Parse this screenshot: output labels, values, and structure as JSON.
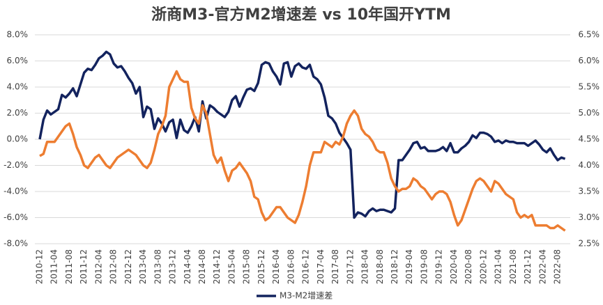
{
  "chart_data": {
    "type": "line",
    "title": "浙商M3-官方M2增速差 vs 10年国开YTM",
    "categories": [
      "2010-12",
      null,
      null,
      null,
      "2011-04",
      null,
      null,
      null,
      "2011-08",
      null,
      null,
      null,
      "2011-12",
      null,
      null,
      null,
      "2012-04",
      null,
      null,
      null,
      "2012-08",
      null,
      null,
      null,
      "2012-12",
      null,
      null,
      null,
      "2013-04",
      null,
      null,
      null,
      "2013-08",
      null,
      null,
      null,
      "2013-12",
      null,
      null,
      null,
      "2014-04",
      null,
      null,
      null,
      "2014-08",
      null,
      null,
      null,
      "2014-12",
      null,
      null,
      null,
      "2015-04",
      null,
      null,
      null,
      "2015-08",
      null,
      null,
      null,
      "2015-12",
      null,
      null,
      null,
      "2016-04",
      null,
      null,
      null,
      "2016-08",
      null,
      null,
      null,
      "2016-12",
      null,
      null,
      null,
      "2017-04",
      null,
      null,
      null,
      "2017-08",
      null,
      null,
      null,
      "2017-12",
      null,
      null,
      null,
      "2018-04",
      null,
      null,
      null,
      "2018-08",
      null,
      null,
      null,
      "2018-12",
      null,
      null,
      null,
      "2019-04",
      null,
      null,
      null,
      "2019-08",
      null,
      null,
      null,
      "2019-12",
      null,
      null,
      null,
      "2020-04",
      null,
      null,
      null,
      "2020-08",
      null,
      null,
      null,
      "2020-12",
      null,
      null,
      null,
      "2021-04",
      null,
      null,
      null,
      "2021-08",
      null,
      null,
      null,
      "2021-12",
      null,
      null,
      null,
      "2022-04",
      null,
      null,
      null,
      "2022-08",
      null,
      null
    ],
    "series": [
      {
        "name": "M3-M2增速差",
        "color": "#13235e",
        "values": [
          0,
          1.5,
          2.2,
          1.9,
          2.1,
          2.3,
          3.4,
          3.2,
          3.5,
          3.9,
          3.3,
          4.2,
          5.1,
          5.4,
          5.3,
          5.7,
          6.2,
          6.4,
          6.7,
          6.5,
          5.8,
          5.5,
          5.6,
          5.2,
          4.7,
          4.3,
          3.5,
          4.0,
          1.7,
          2.5,
          2.3,
          0.8,
          1.6,
          1.2,
          0.6,
          1.3,
          1.5,
          0.1,
          1.5,
          0.7,
          0.5,
          1.0,
          1.7,
          0.6,
          2.9,
          1.6,
          2.6,
          2.4,
          2.1,
          1.9,
          1.7,
          2.1,
          3.0,
          3.3,
          2.5,
          3.2,
          3.8,
          3.9,
          3.7,
          4.3,
          5.7,
          5.9,
          5.8,
          5.2,
          4.8,
          4.2,
          5.8,
          5.9,
          4.8,
          5.6,
          5.8,
          5.5,
          5.4,
          5.7,
          4.8,
          4.6,
          4.2,
          3.2,
          1.8,
          1.6,
          1.2,
          0.5,
          0.1,
          -0.3,
          -0.8,
          -6.0,
          -5.6,
          -5.7,
          -5.9,
          -5.5,
          -5.3,
          -5.5,
          -5.4,
          -5.4,
          -5.5,
          -5.6,
          -5.3,
          -1.6,
          -1.6,
          -1.2,
          -0.8,
          -0.3,
          -0.2,
          -0.7,
          -0.6,
          -0.9,
          -0.9,
          -0.9,
          -0.8,
          -0.6,
          -0.9,
          -0.3,
          -1.0,
          -1.0,
          -0.7,
          -0.5,
          -0.2,
          0.3,
          0.1,
          0.5,
          0.5,
          0.4,
          0.2,
          -0.2,
          -0.1,
          -0.3,
          -0.1,
          -0.2,
          -0.2,
          -0.3,
          -0.3,
          -0.3,
          -0.5,
          -0.3,
          -0.1,
          -0.4,
          -0.8,
          -1.0,
          -0.7,
          -1.2,
          -1.6,
          -1.4,
          -1.5
        ]
      },
      {
        "color": "#ed7d31",
        "axis": "y2",
        "values": [
          4.18,
          4.22,
          4.45,
          4.45,
          4.45,
          4.55,
          4.65,
          4.75,
          4.8,
          4.6,
          4.35,
          4.2,
          4.0,
          3.95,
          4.05,
          4.15,
          4.2,
          4.1,
          4.0,
          3.95,
          4.05,
          4.15,
          4.2,
          4.25,
          4.3,
          4.25,
          4.2,
          4.1,
          4.0,
          3.95,
          4.05,
          4.3,
          4.6,
          4.75,
          4.95,
          5.5,
          5.65,
          5.8,
          5.65,
          5.6,
          5.6,
          5.1,
          4.9,
          4.8,
          5.15,
          5.0,
          4.6,
          4.2,
          4.05,
          4.15,
          3.9,
          3.7,
          3.9,
          3.95,
          4.05,
          3.95,
          3.85,
          3.7,
          3.4,
          3.35,
          3.1,
          2.95,
          3.0,
          3.1,
          3.2,
          3.2,
          3.1,
          3.0,
          2.95,
          2.9,
          3.05,
          3.3,
          3.6,
          4.0,
          4.25,
          4.25,
          4.25,
          4.45,
          4.4,
          4.35,
          4.45,
          4.4,
          4.55,
          4.8,
          4.95,
          5.05,
          4.95,
          4.7,
          4.6,
          4.55,
          4.45,
          4.3,
          4.25,
          4.25,
          4.05,
          3.75,
          3.6,
          3.5,
          3.55,
          3.55,
          3.6,
          3.75,
          3.7,
          3.6,
          3.55,
          3.45,
          3.35,
          3.45,
          3.5,
          3.5,
          3.45,
          3.3,
          3.05,
          2.85,
          2.95,
          3.15,
          3.35,
          3.55,
          3.7,
          3.75,
          3.7,
          3.6,
          3.5,
          3.7,
          3.65,
          3.55,
          3.45,
          3.4,
          3.35,
          3.1,
          3.0,
          3.05,
          3.0,
          3.05,
          2.85,
          2.85,
          2.85,
          2.85,
          2.8,
          2.8,
          2.85,
          2.8,
          2.75
        ]
      }
    ],
    "ylim": [
      -8,
      8
    ],
    "yticks": [
      {
        "value": -8,
        "label": "-8.0%"
      },
      {
        "value": -6,
        "label": "-6.0%"
      },
      {
        "value": -4,
        "label": "-4.0%"
      },
      {
        "value": -2,
        "label": "-2.0%"
      },
      {
        "value": 0,
        "label": "0.0%"
      },
      {
        "value": 2,
        "label": "2.0%"
      },
      {
        "value": 4,
        "label": "4.0%"
      },
      {
        "value": 6,
        "label": "6.0%"
      },
      {
        "value": 8,
        "label": "8.0%"
      }
    ],
    "y2lim": [
      2.5,
      6.5
    ],
    "y2ticks": [
      {
        "value": 2.5,
        "label": "2.5%"
      },
      {
        "value": 3,
        "label": "3.0%"
      },
      {
        "value": 3.5,
        "label": "3.5%"
      },
      {
        "value": 4,
        "label": "4.0%"
      },
      {
        "value": 4.5,
        "label": "4.5%"
      },
      {
        "value": 5,
        "label": "5.0%"
      },
      {
        "value": 5.5,
        "label": "5.5%"
      },
      {
        "value": 6,
        "label": "6.0%"
      },
      {
        "value": 6.5,
        "label": "6.5%"
      }
    ],
    "grid": true,
    "legend": "bottom"
  }
}
